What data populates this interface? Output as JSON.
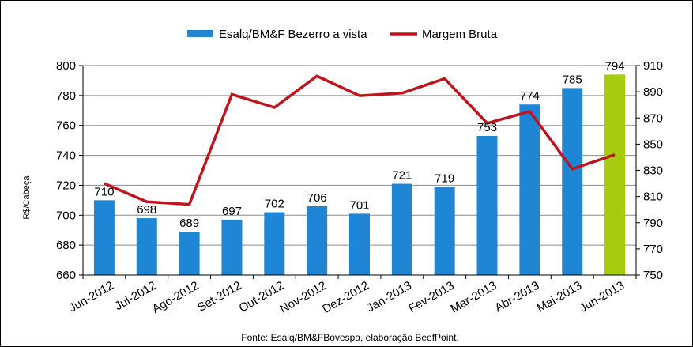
{
  "chart_data": {
    "type": "bar",
    "categories": [
      "Jun-2012",
      "Jul-2012",
      "Ago-2012",
      "Set-2012",
      "Out-2012",
      "Nov-2012",
      "Dez-2012",
      "Jan-2013",
      "Fev-2013",
      "Mar-2013",
      "Abr-2013",
      "Mai-2013",
      "Jun-2013"
    ],
    "series": [
      {
        "name": "Esalq/BM&F Bezerro a vista",
        "type": "bar",
        "axis": "left",
        "values": [
          710,
          698,
          689,
          697,
          702,
          706,
          701,
          721,
          719,
          753,
          774,
          785,
          794
        ],
        "labels": [
          "710",
          "698",
          "689",
          "697",
          "702",
          "706",
          "701",
          "721",
          "719",
          "753",
          "774",
          "785",
          "794"
        ],
        "color": "#1f86d6",
        "highlight_color": "#a6cb0f",
        "highlight_index": 12
      },
      {
        "name": "Margem Bruta",
        "type": "line",
        "axis": "right",
        "values": [
          820,
          806,
          804,
          888,
          878,
          902,
          887,
          889,
          900,
          866,
          875,
          831,
          842
        ],
        "color": "#c0141c"
      }
    ],
    "ylabel": "R$/Cabeça",
    "ylim": [
      660,
      800
    ],
    "yticks": [
      "660",
      "680",
      "700",
      "720",
      "740",
      "760",
      "780",
      "800"
    ],
    "y2lim": [
      750,
      910
    ],
    "y2ticks": [
      "750",
      "770",
      "790",
      "810",
      "830",
      "850",
      "870",
      "890",
      "910"
    ],
    "grid": true,
    "legend_position": "top-center",
    "source": "Fonte:  Esalq/BM&FBovespa,  elaboração  BeefPoint."
  }
}
